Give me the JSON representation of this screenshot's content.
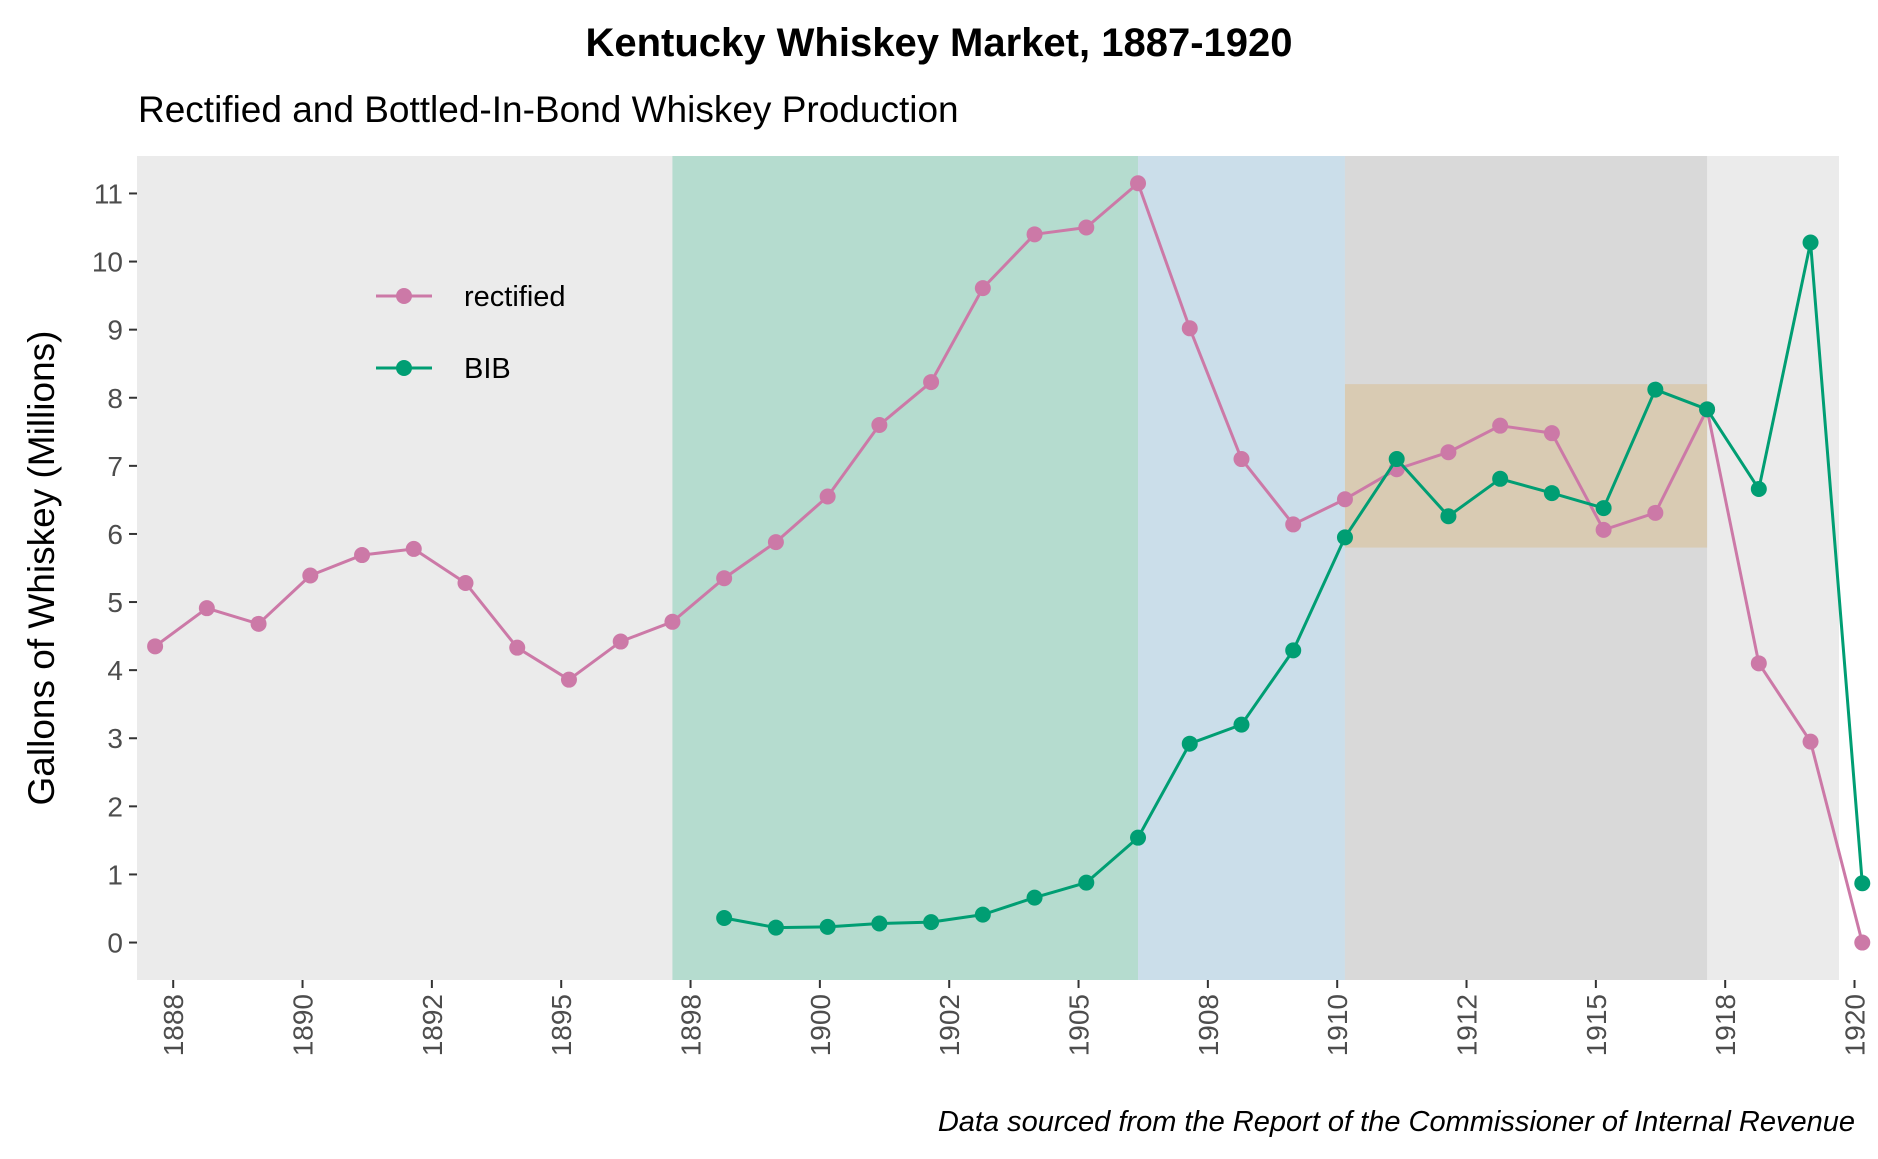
{
  "chart_data": {
    "type": "line",
    "title": "Kentucky Whiskey Market, 1887-1920",
    "subtitle": "Rectified and Bottled-In-Bond Whiskey Production",
    "ylabel": "Gallons of Whiskey (Millions)",
    "xlabel": "",
    "caption": "Data sourced from the Report of the Commissioner of Internal Revenue",
    "xlim": [
      1887.15,
      1920.05
    ],
    "ylim": [
      -0.55,
      11.55
    ],
    "x_ticks": [
      {
        "label": "1888",
        "value": 1887.85
      },
      {
        "label": "1890",
        "value": 1890.35
      },
      {
        "label": "1892",
        "value": 1892.85
      },
      {
        "label": "1895",
        "value": 1895.35
      },
      {
        "label": "1898",
        "value": 1897.85
      },
      {
        "label": "1900",
        "value": 1900.35
      },
      {
        "label": "1902",
        "value": 1902.85
      },
      {
        "label": "1905",
        "value": 1905.35
      },
      {
        "label": "1908",
        "value": 1907.85
      },
      {
        "label": "1910",
        "value": 1910.35
      },
      {
        "label": "1912",
        "value": 1912.85
      },
      {
        "label": "1915",
        "value": 1915.35
      },
      {
        "label": "1918",
        "value": 1917.85
      },
      {
        "label": "1920",
        "value": 1920.35
      }
    ],
    "y_ticks": [
      0,
      1,
      2,
      3,
      4,
      5,
      6,
      7,
      8,
      9,
      10,
      11
    ],
    "grid": false,
    "legend_position": "top-left",
    "background": "#ebebeb",
    "bands": [
      {
        "x0": 1897.5,
        "x1": 1906.5,
        "y0": null,
        "y1": null,
        "color": "#b5dccf"
      },
      {
        "x0": 1906.5,
        "x1": 1910.5,
        "y0": null,
        "y1": null,
        "color": "#cbdeea"
      },
      {
        "x0": 1910.5,
        "x1": 1917.5,
        "y0": null,
        "y1": null,
        "color": "#d9d9d9"
      },
      {
        "x0": 1910.5,
        "x1": 1917.5,
        "y0": 5.8,
        "y1": 8.2,
        "color": "#d9cbb3"
      }
    ],
    "series": [
      {
        "name": "rectified",
        "color": "#cc79a7",
        "x": [
          1887.5,
          1888.5,
          1889.5,
          1890.5,
          1891.5,
          1892.5,
          1893.5,
          1894.5,
          1895.5,
          1896.5,
          1897.5,
          1898.5,
          1899.5,
          1900.5,
          1901.5,
          1902.5,
          1903.5,
          1904.5,
          1905.5,
          1906.5,
          1907.5,
          1908.5,
          1909.5,
          1910.5,
          1911.5,
          1912.5,
          1913.5,
          1914.5,
          1915.5,
          1916.5,
          1917.5,
          1918.5,
          1919.5,
          1920.5
        ],
        "values": [
          4.35,
          4.91,
          4.68,
          5.39,
          5.69,
          5.78,
          5.28,
          4.33,
          3.86,
          4.42,
          4.71,
          5.35,
          5.88,
          6.55,
          7.6,
          8.23,
          9.61,
          10.4,
          10.5,
          11.15,
          9.02,
          7.1,
          6.14,
          6.51,
          6.95,
          7.2,
          7.59,
          7.48,
          6.06,
          6.31,
          7.83,
          4.1,
          2.95,
          0.0
        ]
      },
      {
        "name": "BIB",
        "color": "#009e73",
        "x": [
          1898.5,
          1899.5,
          1900.5,
          1901.5,
          1902.5,
          1903.5,
          1904.5,
          1905.5,
          1906.5,
          1907.5,
          1908.5,
          1909.5,
          1910.5,
          1911.5,
          1912.5,
          1913.5,
          1914.5,
          1915.5,
          1916.5,
          1917.5,
          1918.5,
          1919.5,
          1920.5
        ],
        "values": [
          0.36,
          0.22,
          0.23,
          0.28,
          0.3,
          0.41,
          0.66,
          0.88,
          1.54,
          2.92,
          3.2,
          4.29,
          5.95,
          7.1,
          6.26,
          6.81,
          6.6,
          6.38,
          8.12,
          7.83,
          6.66,
          10.28,
          0.87
        ]
      }
    ]
  }
}
